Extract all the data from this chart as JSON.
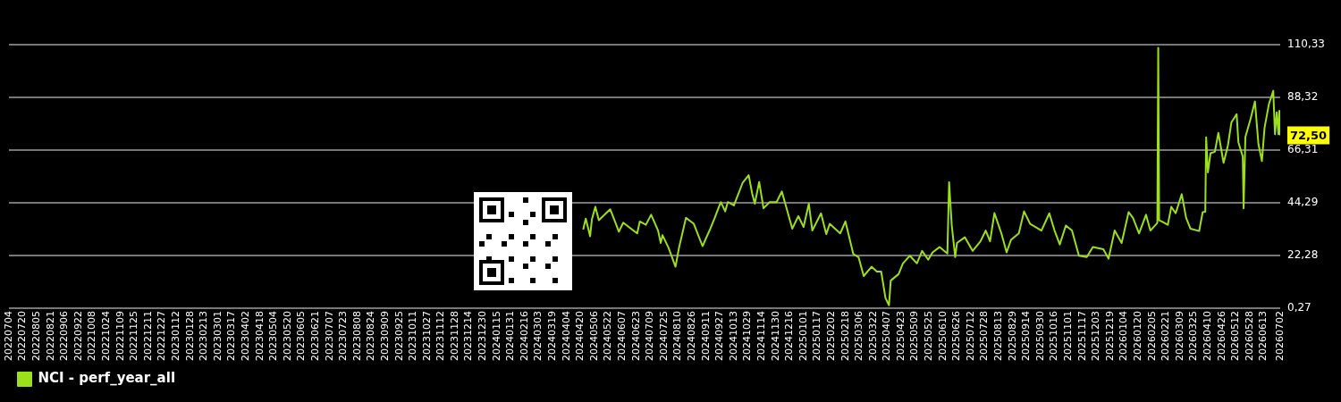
{
  "chart_data": {
    "type": "line",
    "legend": "bottom left",
    "grid": "y",
    "marker": "none",
    "line_style": "solid",
    "xlim": [
      "2022-07-04",
      "2026-07-02"
    ],
    "xticks": [
      {
        "value": "2022-07-04",
        "label": "20220704"
      },
      {
        "value": "2022-07-20",
        "label": "20220720"
      },
      {
        "value": "2022-08-05",
        "label": "20220805"
      },
      {
        "value": "2022-08-21",
        "label": "20220821"
      },
      {
        "value": "2022-09-06",
        "label": "20220906"
      },
      {
        "value": "2022-09-22",
        "label": "20220922"
      },
      {
        "value": "2022-10-08",
        "label": "20221008"
      },
      {
        "value": "2022-10-24",
        "label": "20221024"
      },
      {
        "value": "2022-11-09",
        "label": "20221109"
      },
      {
        "value": "2022-11-25",
        "label": "20221125"
      },
      {
        "value": "2022-12-11",
        "label": "20221211"
      },
      {
        "value": "2022-12-27",
        "label": "20221227"
      },
      {
        "value": "2023-01-12",
        "label": "20230112"
      },
      {
        "value": "2023-01-28",
        "label": "20230128"
      },
      {
        "value": "2023-02-13",
        "label": "20230213"
      },
      {
        "value": "2023-03-01",
        "label": "20230301"
      },
      {
        "value": "2023-03-17",
        "label": "20230317"
      },
      {
        "value": "2023-04-02",
        "label": "20230402"
      },
      {
        "value": "2023-04-18",
        "label": "20230418"
      },
      {
        "value": "2023-05-04",
        "label": "20230504"
      },
      {
        "value": "2023-05-20",
        "label": "20230520"
      },
      {
        "value": "2023-06-05",
        "label": "20230605"
      },
      {
        "value": "2023-06-21",
        "label": "20230621"
      },
      {
        "value": "2023-07-07",
        "label": "20230707"
      },
      {
        "value": "2023-07-23",
        "label": "20230723"
      },
      {
        "value": "2023-08-08",
        "label": "20230808"
      },
      {
        "value": "2023-08-24",
        "label": "20230824"
      },
      {
        "value": "2023-09-09",
        "label": "20230909"
      },
      {
        "value": "2023-09-25",
        "label": "20230925"
      },
      {
        "value": "2023-10-11",
        "label": "20231011"
      },
      {
        "value": "2023-10-27",
        "label": "20231027"
      },
      {
        "value": "2023-11-12",
        "label": "20231112"
      },
      {
        "value": "2023-11-28",
        "label": "20231128"
      },
      {
        "value": "2023-12-14",
        "label": "20231214"
      },
      {
        "value": "2023-12-30",
        "label": "20231230"
      },
      {
        "value": "2024-01-15",
        "label": "20240115"
      },
      {
        "value": "2024-01-31",
        "label": "20240131"
      },
      {
        "value": "2024-02-16",
        "label": "20240216"
      },
      {
        "value": "2024-03-03",
        "label": "20240303"
      },
      {
        "value": "2024-03-19",
        "label": "20240319"
      },
      {
        "value": "2024-04-04",
        "label": "20240404"
      },
      {
        "value": "2024-04-20",
        "label": "20240420"
      },
      {
        "value": "2024-05-06",
        "label": "20240506"
      },
      {
        "value": "2024-05-22",
        "label": "20240522"
      },
      {
        "value": "2024-06-07",
        "label": "20240607"
      },
      {
        "value": "2024-06-23",
        "label": "20240623"
      },
      {
        "value": "2024-07-09",
        "label": "20240709"
      },
      {
        "value": "2024-07-25",
        "label": "20240725"
      },
      {
        "value": "2024-08-10",
        "label": "20240810"
      },
      {
        "value": "2024-08-26",
        "label": "20240826"
      },
      {
        "value": "2024-09-11",
        "label": "20240911"
      },
      {
        "value": "2024-09-27",
        "label": "20240927"
      },
      {
        "value": "2024-10-13",
        "label": "20241013"
      },
      {
        "value": "2024-10-29",
        "label": "20241029"
      },
      {
        "value": "2024-11-14",
        "label": "20241114"
      },
      {
        "value": "2024-11-30",
        "label": "20241130"
      },
      {
        "value": "2024-12-16",
        "label": "20241216"
      },
      {
        "value": "2025-01-01",
        "label": "20250101"
      },
      {
        "value": "2025-01-17",
        "label": "20250117"
      },
      {
        "value": "2025-02-02",
        "label": "20250202"
      },
      {
        "value": "2025-02-18",
        "label": "20250218"
      },
      {
        "value": "2025-03-06",
        "label": "20250306"
      },
      {
        "value": "2025-03-22",
        "label": "20250322"
      },
      {
        "value": "2025-04-07",
        "label": "20250407"
      },
      {
        "value": "2025-04-23",
        "label": "20250423"
      },
      {
        "value": "2025-05-09",
        "label": "20250509"
      },
      {
        "value": "2025-05-25",
        "label": "20250525"
      },
      {
        "value": "2025-06-10",
        "label": "20250610"
      },
      {
        "value": "2025-06-26",
        "label": "20250626"
      },
      {
        "value": "2025-07-12",
        "label": "20250712"
      },
      {
        "value": "2025-07-28",
        "label": "20250728"
      },
      {
        "value": "2025-08-13",
        "label": "20250813"
      },
      {
        "value": "2025-08-29",
        "label": "20250829"
      },
      {
        "value": "2025-09-14",
        "label": "20250914"
      },
      {
        "value": "2025-09-30",
        "label": "20250930"
      },
      {
        "value": "2025-10-16",
        "label": "20251016"
      },
      {
        "value": "2025-11-01",
        "label": "20251101"
      },
      {
        "value": "2025-11-17",
        "label": "20251117"
      },
      {
        "value": "2025-12-03",
        "label": "20251203"
      },
      {
        "value": "2025-12-19",
        "label": "20251219"
      },
      {
        "value": "2026-01-04",
        "label": "20260104"
      },
      {
        "value": "2026-01-20",
        "label": "20260120"
      },
      {
        "value": "2026-02-05",
        "label": "20260205"
      },
      {
        "value": "2026-02-21",
        "label": "20260221"
      },
      {
        "value": "2026-03-09",
        "label": "20260309"
      },
      {
        "value": "2026-03-25",
        "label": "20260325"
      },
      {
        "value": "2026-04-10",
        "label": "20260410"
      },
      {
        "value": "2026-04-26",
        "label": "20260426"
      },
      {
        "value": "2026-05-12",
        "label": "20260512"
      },
      {
        "value": "2026-05-28",
        "label": "20260528"
      },
      {
        "value": "2026-06-13",
        "label": "20260613"
      },
      {
        "value": "2026-07-02",
        "label": "20260702"
      }
    ],
    "ylim": [
      0.27,
      110.33
    ],
    "yticks": [
      {
        "value": 0.27,
        "label": "0,27"
      },
      {
        "value": 22.28,
        "label": "22,28"
      },
      {
        "value": 44.29,
        "label": "44,29"
      },
      {
        "value": 66.31,
        "label": "66,31"
      },
      {
        "value": 88.32,
        "label": "88,32"
      },
      {
        "value": 110.33,
        "label": "110,33"
      }
    ],
    "annotations": [
      {
        "text": "72,50",
        "x": "2026-07-02",
        "y": 72.5
      }
    ],
    "series": [
      {
        "name": "NCI - perf_year_all",
        "color": "#9be01a",
        "x": [
          "2024-04-23",
          "2024-04-26",
          "2024-05-01",
          "2024-05-03",
          "2024-05-07",
          "2024-05-11",
          "2024-05-24",
          "2024-05-31",
          "2024-06-03",
          "2024-06-08",
          "2024-06-24",
          "2024-06-27",
          "2024-07-04",
          "2024-07-10",
          "2024-07-18",
          "2024-07-21",
          "2024-07-23",
          "2024-07-30",
          "2024-08-07",
          "2024-08-11",
          "2024-08-19",
          "2024-08-28",
          "2024-09-07",
          "2024-09-16",
          "2024-09-21",
          "2024-09-28",
          "2024-10-03",
          "2024-10-06",
          "2024-10-13",
          "2024-10-23",
          "2024-10-30",
          "2024-11-03",
          "2024-11-06",
          "2024-11-11",
          "2024-11-16",
          "2024-11-23",
          "2024-12-01",
          "2024-12-07",
          "2024-12-13",
          "2024-12-19",
          "2024-12-26",
          "2025-01-01",
          "2025-01-07",
          "2025-01-11",
          "2025-01-21",
          "2025-01-27",
          "2025-01-31",
          "2025-02-12",
          "2025-02-18",
          "2025-02-27",
          "2025-03-05",
          "2025-03-11",
          "2025-03-20",
          "2025-03-26",
          "2025-03-31",
          "2025-04-05",
          "2025-04-09",
          "2025-04-11",
          "2025-04-20",
          "2025-04-25",
          "2025-05-03",
          "2025-05-11",
          "2025-05-17",
          "2025-05-24",
          "2025-05-29",
          "2025-06-06",
          "2025-06-15",
          "2025-06-17",
          "2025-06-20",
          "2025-06-24",
          "2025-06-26",
          "2025-07-05",
          "2025-07-14",
          "2025-07-23",
          "2025-07-29",
          "2025-08-03",
          "2025-08-08",
          "2025-08-16",
          "2025-08-22",
          "2025-08-27",
          "2025-09-05",
          "2025-09-11",
          "2025-09-18",
          "2025-10-01",
          "2025-10-10",
          "2025-10-16",
          "2025-10-22",
          "2025-10-29",
          "2025-11-05",
          "2025-11-13",
          "2025-11-22",
          "2025-11-29",
          "2025-12-11",
          "2025-12-17",
          "2025-12-24",
          "2026-01-01",
          "2026-01-09",
          "2026-01-14",
          "2026-01-21",
          "2026-01-29",
          "2026-02-03",
          "2026-02-10",
          "2026-02-11",
          "2026-02-12",
          "2026-02-13",
          "2026-02-16",
          "2026-02-23",
          "2026-02-27",
          "2026-03-04",
          "2026-03-11",
          "2026-03-16",
          "2026-03-21",
          "2026-03-31",
          "2026-04-04",
          "2026-04-07",
          "2026-04-08",
          "2026-04-10",
          "2026-04-13",
          "2026-04-18",
          "2026-04-22",
          "2026-04-28",
          "2026-05-03",
          "2026-05-07",
          "2026-05-13",
          "2026-05-15",
          "2026-05-20",
          "2026-05-21",
          "2026-05-23",
          "2026-05-29",
          "2026-06-03",
          "2026-06-07",
          "2026-06-11",
          "2026-06-14",
          "2026-06-19",
          "2026-06-24",
          "2026-06-26",
          "2026-06-28",
          "2026-06-30",
          "2026-07-01",
          "2026-07-02"
        ],
        "values": [
          33.1,
          37.7,
          30.3,
          37.3,
          42.6,
          37,
          41.6,
          35.1,
          32.2,
          36,
          31.5,
          36.5,
          35.1,
          39.3,
          32.7,
          27.5,
          30.8,
          25.5,
          17.6,
          25.5,
          38,
          35.5,
          26.2,
          33.5,
          38,
          44.6,
          40.7,
          44.6,
          43.2,
          52.6,
          55.8,
          48.1,
          43.9,
          53,
          42,
          44.6,
          44.6,
          49,
          41.3,
          33.5,
          38.7,
          34.2,
          43.9,
          32.7,
          39.9,
          31.2,
          35.5,
          31.5,
          36.5,
          22.9,
          21.6,
          13.7,
          17.6,
          15.6,
          15.6,
          4.5,
          1.5,
          11.8,
          14.5,
          19,
          22.2,
          19,
          24.2,
          20.5,
          23.6,
          25.8,
          23.1,
          52.9,
          35,
          21.6,
          27.5,
          29.9,
          24.2,
          28.2,
          32.7,
          28.2,
          40,
          31.5,
          23.6,
          28.8,
          31.5,
          40.7,
          35.5,
          32.7,
          39.9,
          32.7,
          26.9,
          34.8,
          32.7,
          22.2,
          21.6,
          25.8,
          24.9,
          21,
          32.7,
          27.5,
          40.4,
          38,
          31.5,
          39.3,
          32.7,
          35.5,
          36,
          109,
          37,
          36.5,
          35.1,
          42.6,
          39.9,
          47.9,
          38,
          33.5,
          32.5,
          40.4,
          40.6,
          71.6,
          57,
          65,
          65.6,
          73.5,
          61,
          68.3,
          77.9,
          81.3,
          69.6,
          63.6,
          42,
          71.7,
          79.4,
          86.6,
          68.8,
          61.7,
          75.6,
          85.5,
          91,
          72.9,
          82.1,
          72.9,
          82.7,
          72.5
        ]
      }
    ]
  }
}
